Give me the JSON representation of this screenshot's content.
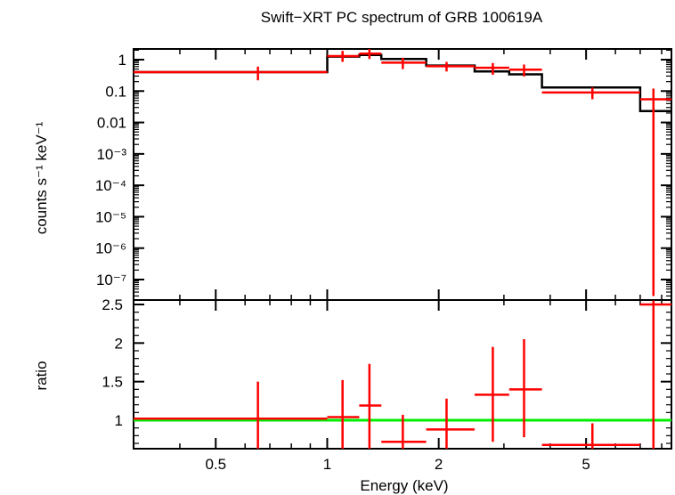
{
  "chart_data": [
    {
      "type": "scatter",
      "panel": "spectrum",
      "title": "Swift−XRT PC spectrum of GRB 100619A",
      "ylabel": "counts s⁻¹ keV⁻¹",
      "xlabel": "",
      "x_scale": "log",
      "y_scale": "log",
      "xlim": [
        0.3,
        8.5
      ],
      "ylim": [
        3e-08,
        3.5
      ],
      "y_ticks": [
        {
          "value": 1,
          "label": "1"
        },
        {
          "value": 0.1,
          "label": "0.1"
        },
        {
          "value": 0.01,
          "label": "0.01"
        },
        {
          "value": 0.001,
          "label": "10⁻³"
        },
        {
          "value": 0.0001,
          "label": "10⁻⁴"
        },
        {
          "value": 1e-05,
          "label": "10⁻⁵"
        },
        {
          "value": 1e-06,
          "label": "10⁻⁶"
        },
        {
          "value": 1e-07,
          "label": "10⁻⁷"
        }
      ],
      "series": [
        {
          "color": "#ff0000",
          "points": [
            {
              "x": 0.65,
              "xlo": 0.3,
              "xhi": 1.0,
              "y": 0.4,
              "ylo": 0.22,
              "yhi": 0.6
            },
            {
              "x": 1.1,
              "xlo": 1.0,
              "xhi": 1.22,
              "y": 1.3,
              "ylo": 0.85,
              "yhi": 1.9
            },
            {
              "x": 1.3,
              "xlo": 1.22,
              "xhi": 1.4,
              "y": 1.55,
              "ylo": 1.05,
              "yhi": 2.2
            },
            {
              "x": 1.6,
              "xlo": 1.4,
              "xhi": 1.85,
              "y": 0.8,
              "ylo": 0.5,
              "yhi": 1.15
            },
            {
              "x": 2.1,
              "xlo": 1.85,
              "xhi": 2.5,
              "y": 0.62,
              "ylo": 0.42,
              "yhi": 0.85
            },
            {
              "x": 2.8,
              "xlo": 2.5,
              "xhi": 3.1,
              "y": 0.55,
              "ylo": 0.33,
              "yhi": 0.78
            },
            {
              "x": 3.4,
              "xlo": 3.1,
              "xhi": 3.8,
              "y": 0.48,
              "ylo": 0.29,
              "yhi": 0.7
            },
            {
              "x": 5.2,
              "xlo": 3.8,
              "xhi": 7.0,
              "y": 0.09,
              "ylo": 0.055,
              "yhi": 0.13
            },
            {
              "x": 7.6,
              "xlo": 7.0,
              "xhi": 8.5,
              "y": 0.055,
              "ylo": 3e-08,
              "yhi": 0.12
            }
          ]
        }
      ],
      "model": {
        "color": "#000000",
        "steps": [
          {
            "xlo": 0.3,
            "xhi": 1.0,
            "y": 0.4
          },
          {
            "xlo": 1.0,
            "xhi": 1.22,
            "y": 1.25
          },
          {
            "xlo": 1.22,
            "xhi": 1.4,
            "y": 1.4
          },
          {
            "xlo": 1.4,
            "xhi": 1.85,
            "y": 1.05
          },
          {
            "xlo": 1.85,
            "xhi": 2.5,
            "y": 0.65
          },
          {
            "xlo": 2.5,
            "xhi": 3.1,
            "y": 0.42
          },
          {
            "xlo": 3.1,
            "xhi": 3.8,
            "y": 0.34
          },
          {
            "xlo": 3.8,
            "xhi": 7.0,
            "y": 0.13
          },
          {
            "xlo": 7.0,
            "xhi": 8.5,
            "y": 0.023
          }
        ]
      }
    },
    {
      "type": "scatter",
      "panel": "ratio",
      "title": "",
      "xlabel": "Energy (keV)",
      "ylabel": "ratio",
      "x_scale": "log",
      "y_scale": "linear",
      "xlim": [
        0.3,
        8.5
      ],
      "ylim": [
        0.6,
        2.55
      ],
      "x_ticks": [
        {
          "value": 0.5,
          "label": "0.5"
        },
        {
          "value": 1,
          "label": "1"
        },
        {
          "value": 2,
          "label": "2"
        },
        {
          "value": 5,
          "label": "5"
        }
      ],
      "y_ticks": [
        {
          "value": 1,
          "label": "1"
        },
        {
          "value": 1.5,
          "label": "1.5"
        },
        {
          "value": 2,
          "label": "2"
        },
        {
          "value": 2.5,
          "label": "2.5"
        }
      ],
      "reference_line": {
        "y": 1,
        "color": "#00ee00"
      },
      "series": [
        {
          "color": "#ff0000",
          "points": [
            {
              "x": 0.65,
              "xlo": 0.3,
              "xhi": 1.0,
              "y": 1.02,
              "ylo": 0.6,
              "yhi": 1.5
            },
            {
              "x": 1.1,
              "xlo": 1.0,
              "xhi": 1.22,
              "y": 1.04,
              "ylo": 0.6,
              "yhi": 1.52
            },
            {
              "x": 1.3,
              "xlo": 1.22,
              "xhi": 1.4,
              "y": 1.19,
              "ylo": 0.6,
              "yhi": 1.73
            },
            {
              "x": 1.6,
              "xlo": 1.4,
              "xhi": 1.85,
              "y": 0.72,
              "ylo": 0.6,
              "yhi": 1.07
            },
            {
              "x": 2.1,
              "xlo": 1.85,
              "xhi": 2.5,
              "y": 0.88,
              "ylo": 0.6,
              "yhi": 1.28
            },
            {
              "x": 2.8,
              "xlo": 2.5,
              "xhi": 3.1,
              "y": 1.33,
              "ylo": 0.72,
              "yhi": 1.95
            },
            {
              "x": 3.4,
              "xlo": 3.1,
              "xhi": 3.8,
              "y": 1.4,
              "ylo": 0.78,
              "yhi": 2.05
            },
            {
              "x": 5.2,
              "xlo": 3.8,
              "xhi": 7.0,
              "y": 0.68,
              "ylo": 0.6,
              "yhi": 0.96
            },
            {
              "x": 7.6,
              "xlo": 7.0,
              "xhi": 8.5,
              "y": 2.5,
              "ylo": 0.6,
              "yhi": 2.55
            }
          ]
        }
      ]
    }
  ]
}
